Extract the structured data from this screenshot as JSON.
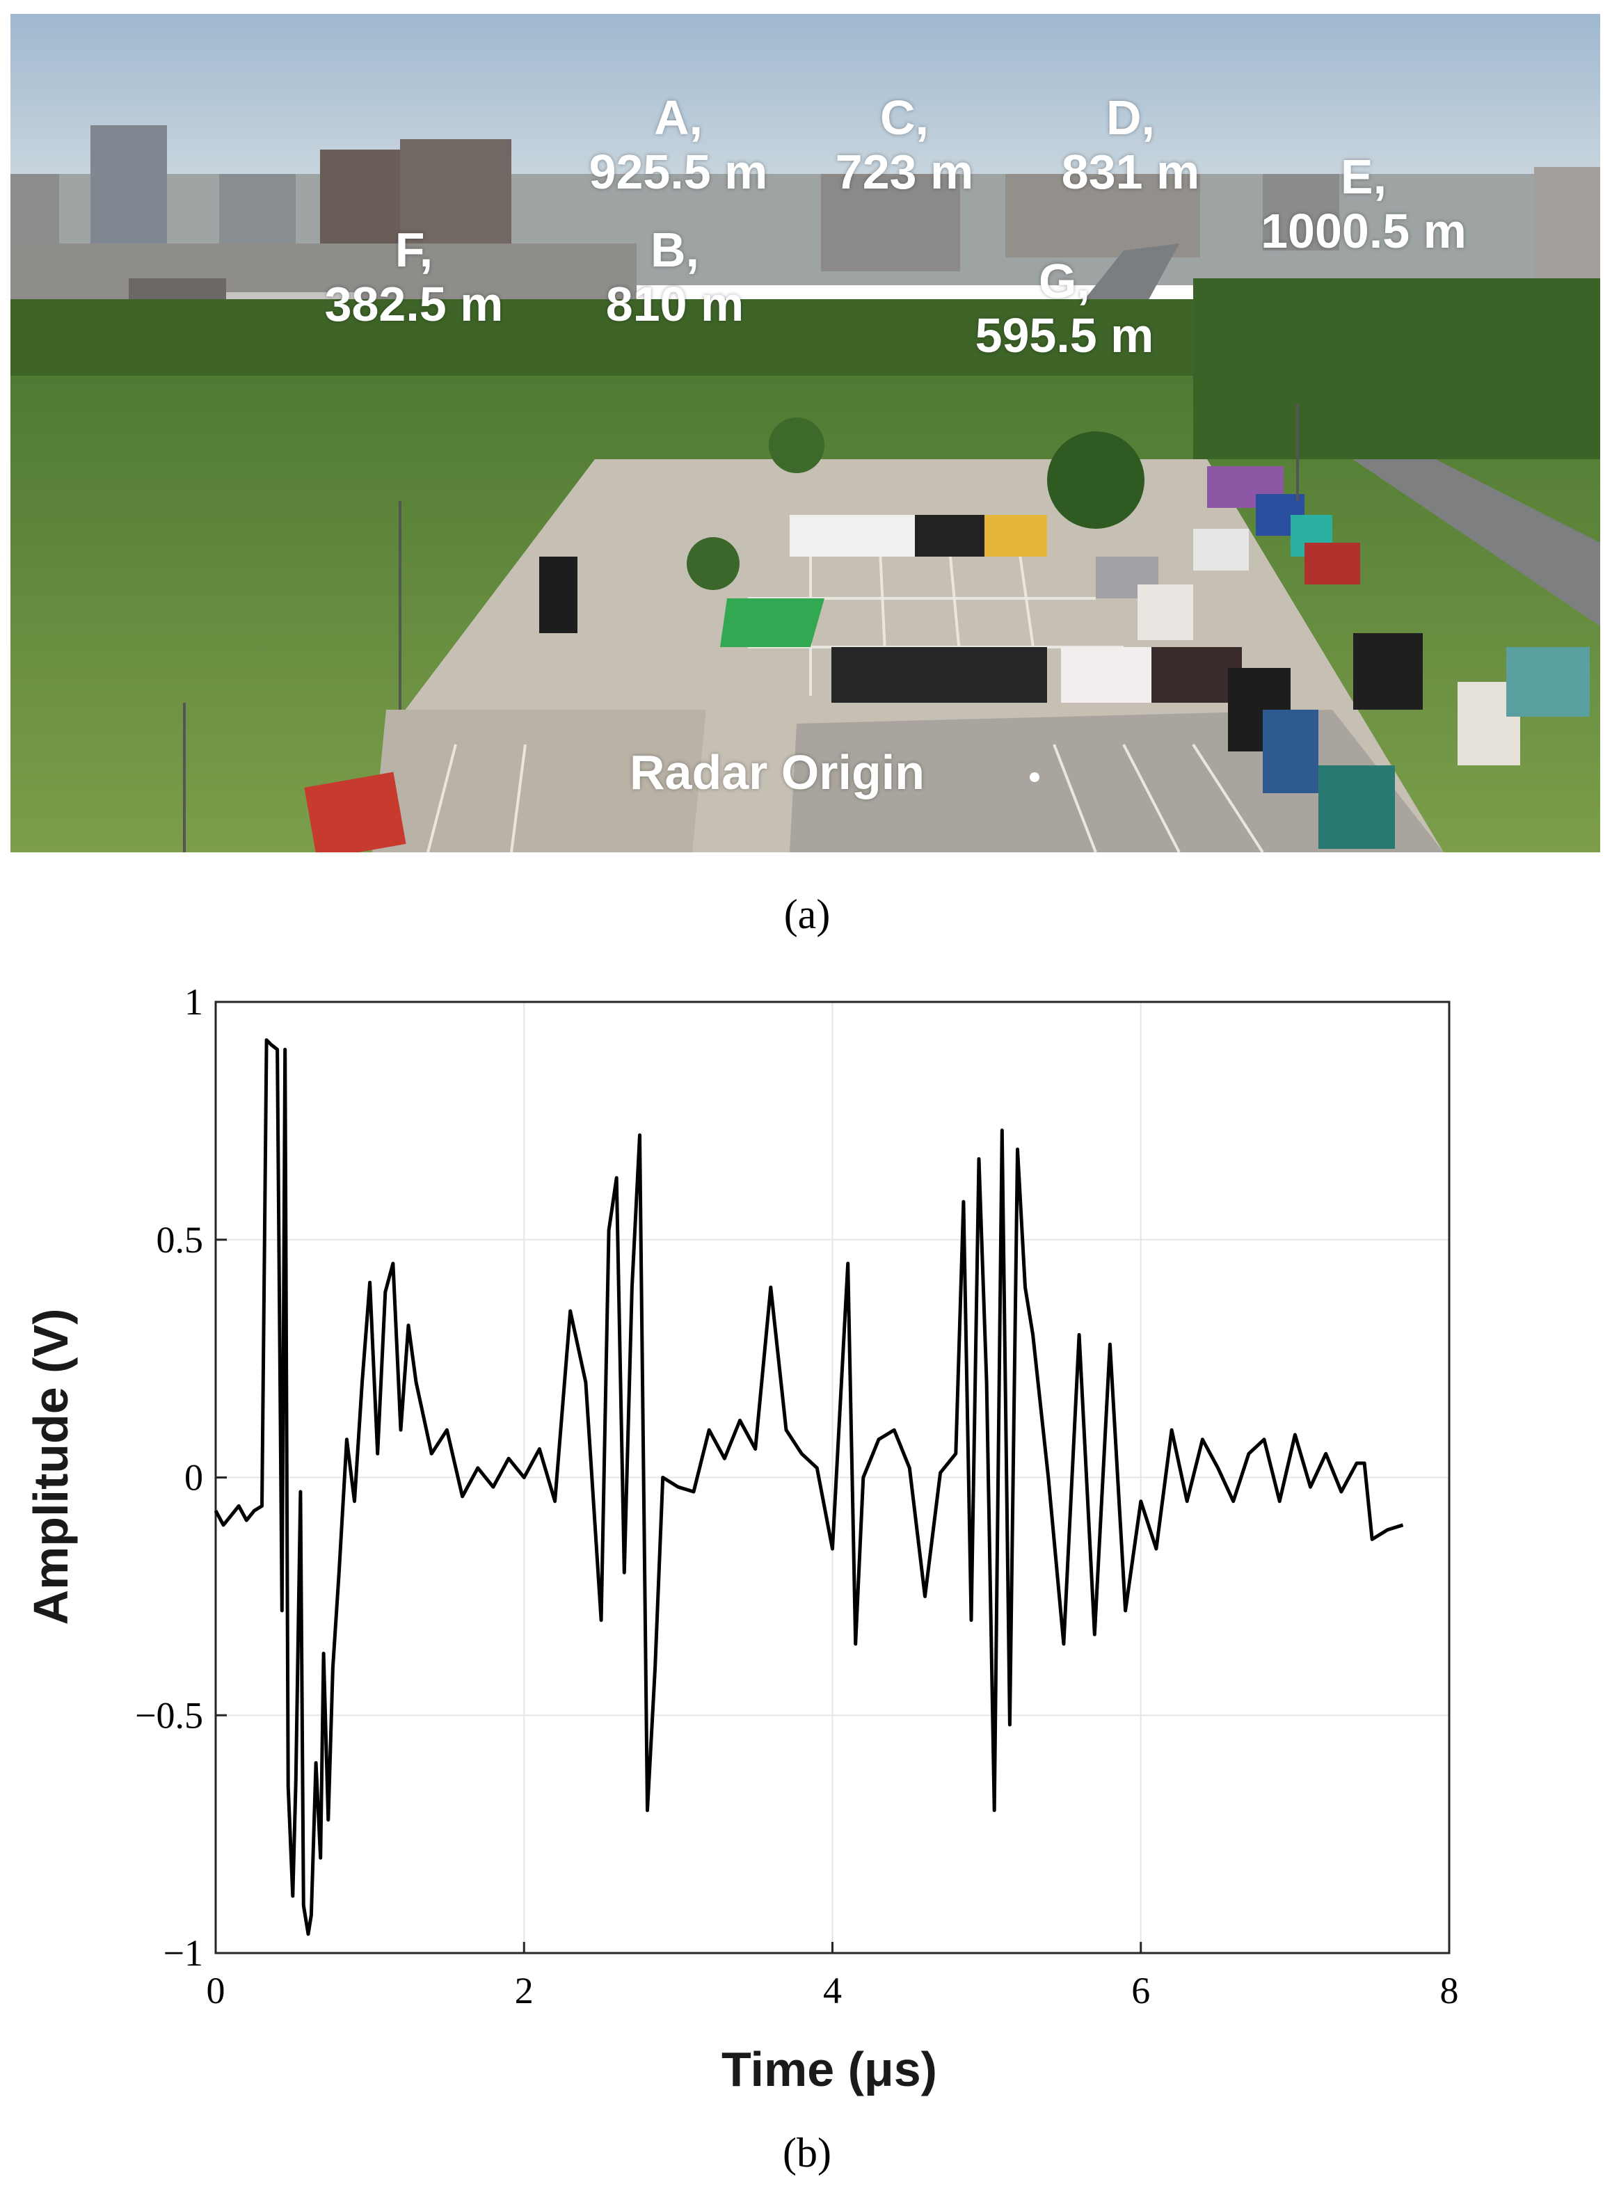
{
  "photo": {
    "labels": [
      {
        "letter": "A,",
        "distance": "925.5 m"
      },
      {
        "letter": "B,",
        "distance": "810 m"
      },
      {
        "letter": "C,",
        "distance": "723 m"
      },
      {
        "letter": "D,",
        "distance": "831 m"
      },
      {
        "letter": "E,",
        "distance": "1000.5 m"
      },
      {
        "letter": "F,",
        "distance": "382.5 m"
      },
      {
        "letter": "G,",
        "distance": "595.5 m"
      }
    ],
    "origin_label": "Radar Origin",
    "caption": "(a)"
  },
  "chart_caption": "(b)",
  "chart_data": {
    "type": "line",
    "title": "",
    "xlabel": "Time (μs)",
    "ylabel": "Amplitude (V)",
    "xlim": [
      0,
      8
    ],
    "ylim": [
      -1,
      1
    ],
    "xticks": [
      "0",
      "2",
      "4",
      "6",
      "8"
    ],
    "yticks": [
      "−1",
      "−0.5",
      "0",
      "0.5",
      "1"
    ],
    "grid": true,
    "line_color": "#000000",
    "series": [
      {
        "x": [
          0.0,
          0.05,
          0.1,
          0.15,
          0.2,
          0.25,
          0.3,
          0.33,
          0.36,
          0.4,
          0.43,
          0.45,
          0.47,
          0.5,
          0.52,
          0.55,
          0.57,
          0.6,
          0.62,
          0.65,
          0.68,
          0.7,
          0.73,
          0.76,
          0.8,
          0.85,
          0.9,
          0.95,
          1.0,
          1.05,
          1.1,
          1.15,
          1.2,
          1.25,
          1.3,
          1.4,
          1.5,
          1.6,
          1.7,
          1.8,
          1.9,
          2.0,
          2.1,
          2.2,
          2.3,
          2.4,
          2.5,
          2.55,
          2.6,
          2.65,
          2.7,
          2.75,
          2.8,
          2.85,
          2.9,
          3.0,
          3.1,
          3.2,
          3.3,
          3.4,
          3.5,
          3.6,
          3.7,
          3.8,
          3.9,
          4.0,
          4.1,
          4.15,
          4.2,
          4.3,
          4.4,
          4.5,
          4.6,
          4.7,
          4.8,
          4.85,
          4.9,
          4.95,
          5.0,
          5.05,
          5.1,
          5.15,
          5.2,
          5.25,
          5.3,
          5.4,
          5.5,
          5.6,
          5.7,
          5.8,
          5.9,
          6.0,
          6.1,
          6.2,
          6.3,
          6.4,
          6.5,
          6.6,
          6.7,
          6.8,
          6.9,
          7.0,
          7.1,
          7.2,
          7.3,
          7.4,
          7.45,
          7.5,
          7.6,
          7.7
        ],
        "y": [
          -0.07,
          -0.1,
          -0.08,
          -0.06,
          -0.09,
          -0.07,
          -0.06,
          0.92,
          0.91,
          0.9,
          -0.28,
          0.9,
          -0.65,
          -0.88,
          -0.64,
          -0.03,
          -0.9,
          -0.96,
          -0.92,
          -0.6,
          -0.8,
          -0.37,
          -0.72,
          -0.4,
          -0.2,
          0.08,
          -0.05,
          0.2,
          0.41,
          0.05,
          0.39,
          0.45,
          0.1,
          0.32,
          0.2,
          0.05,
          0.1,
          -0.04,
          0.02,
          -0.02,
          0.04,
          0.0,
          0.06,
          -0.05,
          0.35,
          0.2,
          -0.3,
          0.52,
          0.63,
          -0.2,
          0.4,
          0.72,
          -0.7,
          -0.4,
          0.0,
          -0.02,
          -0.03,
          0.1,
          0.04,
          0.12,
          0.06,
          0.4,
          0.1,
          0.05,
          0.02,
          -0.15,
          0.45,
          -0.35,
          0.0,
          0.08,
          0.1,
          0.02,
          -0.25,
          0.01,
          0.05,
          0.58,
          -0.3,
          0.67,
          0.2,
          -0.7,
          0.73,
          -0.52,
          0.69,
          0.4,
          0.3,
          0.0,
          -0.35,
          0.3,
          -0.33,
          0.28,
          -0.28,
          -0.05,
          -0.15,
          0.1,
          -0.05,
          0.08,
          0.02,
          -0.05,
          0.05,
          0.08,
          -0.05,
          0.09,
          -0.02,
          0.05,
          -0.03,
          0.03,
          0.03,
          -0.13,
          -0.11,
          -0.1
        ]
      }
    ]
  }
}
